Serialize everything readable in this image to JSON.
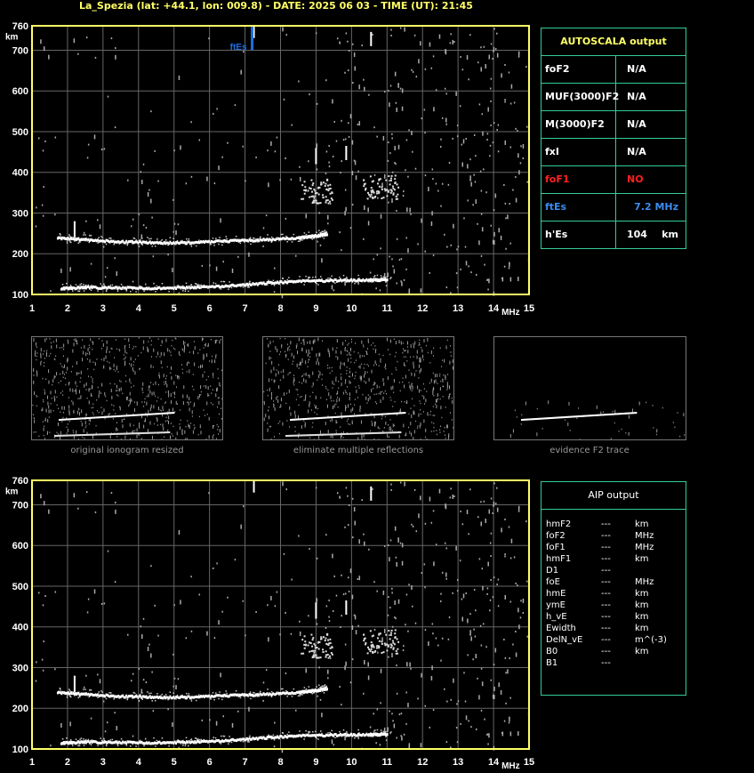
{
  "header": {
    "title": "La_Spezia (lat: +44.1, lon: 009.8) - DATE: 2025 06 03 - TIME (UT): 21:45"
  },
  "colors": {
    "axis": "#ffff66",
    "grid": "#666666",
    "trace": "#ffffff",
    "fte": "#1e6fe0",
    "table_border": "#33cc99",
    "red": "#ff2020"
  },
  "chart_data": [
    {
      "type": "scatter",
      "title": "",
      "xlabel": "MHz",
      "ylabel": "km",
      "xlim": [
        1,
        15
      ],
      "ylim": [
        100,
        760
      ],
      "x_ticks": [
        "1",
        "2",
        "3",
        "4",
        "5",
        "6",
        "7",
        "8",
        "9",
        "10",
        "11",
        "12",
        "13",
        "14",
        "15"
      ],
      "y_ticks": [
        "100",
        "200",
        "300",
        "400",
        "500",
        "600",
        "700",
        "760"
      ],
      "marker": {
        "label": "ftEs",
        "x": 7.2
      },
      "series": [
        {
          "x": [
            1.7,
            2.5,
            3.5,
            4.5,
            5.5,
            6.5,
            7.5,
            8.5,
            9.0,
            9.3
          ],
          "y": [
            240,
            235,
            230,
            228,
            228,
            232,
            235,
            240,
            245,
            250
          ]
        },
        {
          "x": [
            1.8,
            2.5,
            3.5,
            4.5,
            5.5,
            6.5,
            7.5,
            8.5,
            9.5,
            10.5,
            11.0
          ],
          "y": [
            115,
            118,
            117,
            116,
            118,
            122,
            128,
            133,
            135,
            136,
            137
          ]
        }
      ]
    },
    {
      "type": "scatter",
      "title": "",
      "xlabel": "MHz",
      "ylabel": "km",
      "xlim": [
        1,
        15
      ],
      "ylim": [
        100,
        760
      ],
      "x_ticks": [
        "1",
        "2",
        "3",
        "4",
        "5",
        "6",
        "7",
        "8",
        "9",
        "10",
        "11",
        "12",
        "13",
        "14",
        "15"
      ],
      "y_ticks": [
        "100",
        "200",
        "300",
        "400",
        "500",
        "600",
        "700",
        "760"
      ]
    }
  ],
  "autoscala": {
    "title": "AUTOSCALA output",
    "rows": [
      {
        "name": "foF2",
        "value": "N/A",
        "unit": ""
      },
      {
        "name": "MUF(3000)F2",
        "value": "N/A",
        "unit": ""
      },
      {
        "name": "M(3000)F2",
        "value": "N/A",
        "unit": ""
      },
      {
        "name": "fxI",
        "value": "N/A",
        "unit": ""
      },
      {
        "name": "foF1",
        "value": "NO",
        "unit": ""
      },
      {
        "name": "ftEs",
        "value": "7.2 MHz",
        "unit": ""
      },
      {
        "name": "h'Es",
        "value": "104",
        "unit": "km"
      }
    ]
  },
  "thumbnails": [
    {
      "caption": "original ionogram resized"
    },
    {
      "caption": "eliminate multiple reflections"
    },
    {
      "caption": "evidence F2 trace"
    }
  ],
  "aip": {
    "title": "AIP output",
    "rows": [
      {
        "name": "hmF2",
        "dash": "---",
        "unit": "km"
      },
      {
        "name": "foF2",
        "dash": "---",
        "unit": "MHz"
      },
      {
        "name": "foF1",
        "dash": "---",
        "unit": "MHz"
      },
      {
        "name": "hmF1",
        "dash": "---",
        "unit": "km"
      },
      {
        "name": "D1",
        "dash": "---",
        "unit": ""
      },
      {
        "name": "foE",
        "dash": "---",
        "unit": "MHz"
      },
      {
        "name": "hmE",
        "dash": "---",
        "unit": "km"
      },
      {
        "name": "ymE",
        "dash": "---",
        "unit": "km"
      },
      {
        "name": "h_vE",
        "dash": "---",
        "unit": "km"
      },
      {
        "name": "Ewidth",
        "dash": "---",
        "unit": "km"
      },
      {
        "name": "DelN_vE",
        "dash": "---",
        "unit": "m^(-3)"
      },
      {
        "name": "B0",
        "dash": "---",
        "unit": "km"
      },
      {
        "name": "B1",
        "dash": "---",
        "unit": ""
      }
    ]
  }
}
